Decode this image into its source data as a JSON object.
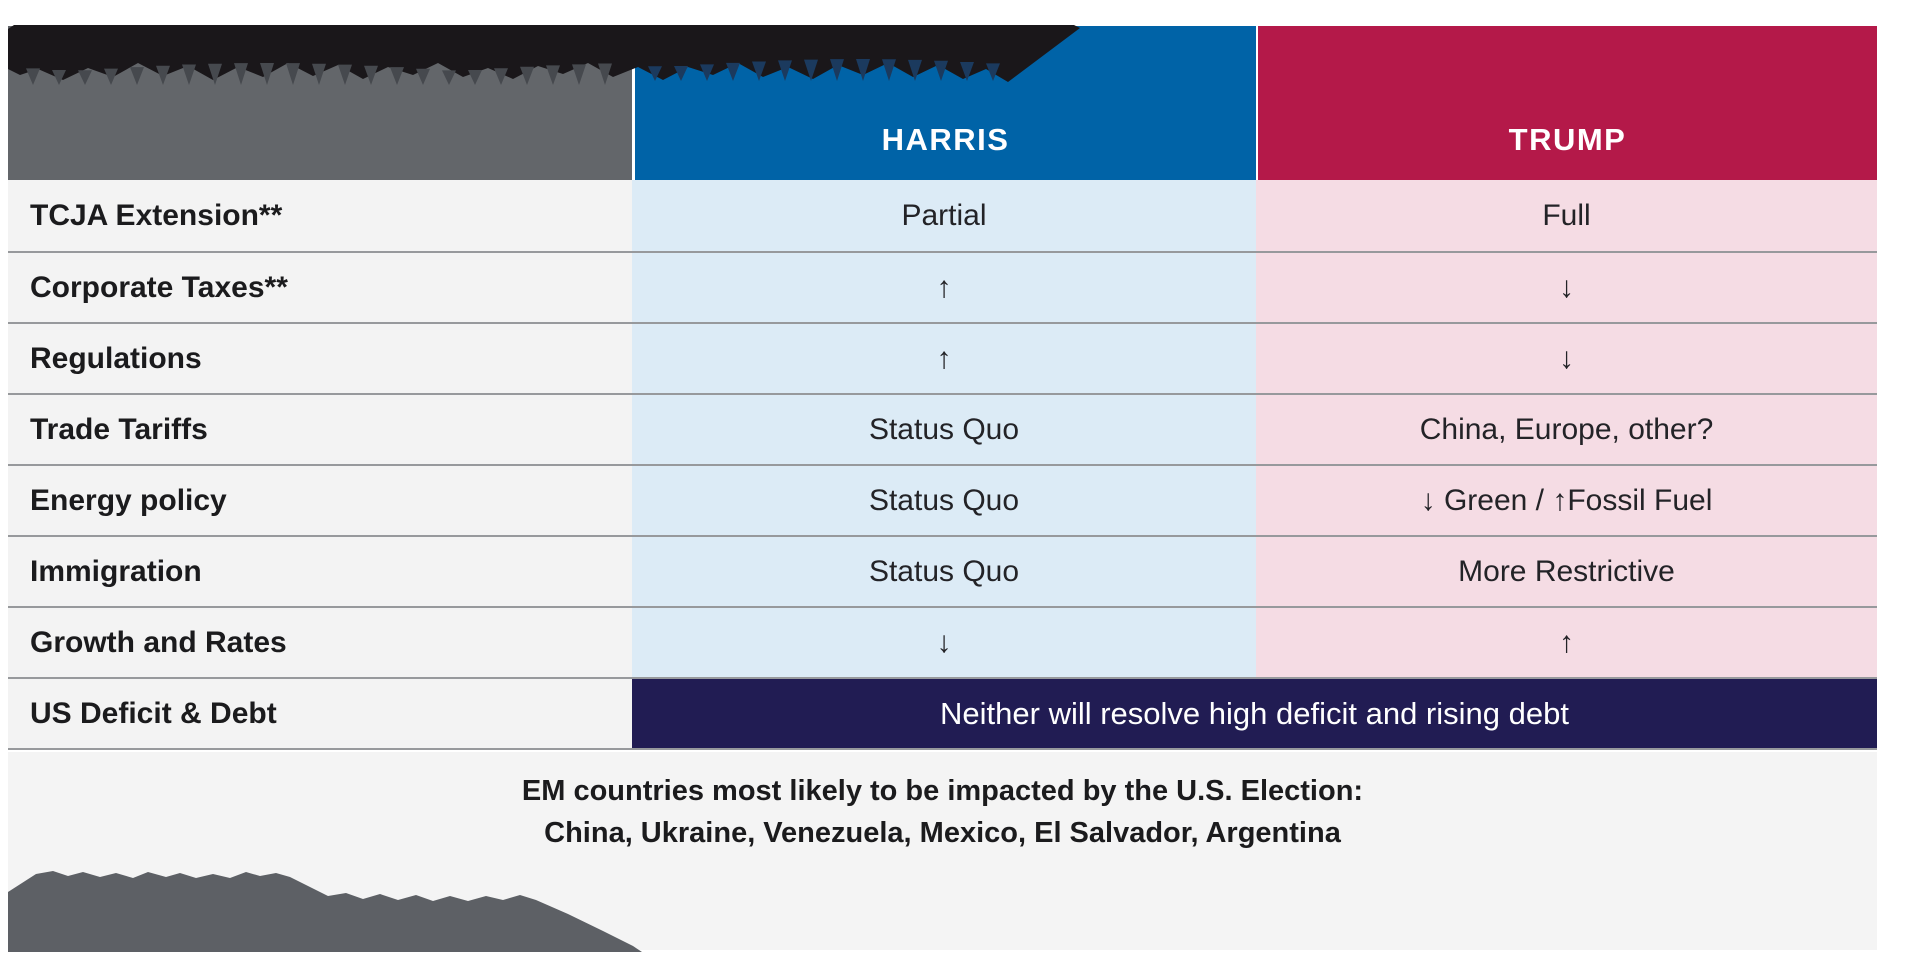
{
  "table": {
    "columns": {
      "label_header": "",
      "harris": "HARRIS",
      "trump": "TRUMP"
    },
    "rows": [
      {
        "label": "TCJA Extension**",
        "harris": "Partial",
        "trump": "Full"
      },
      {
        "label": "Corporate Taxes**",
        "harris": "↑",
        "trump": "↓"
      },
      {
        "label": "Regulations",
        "harris": "↑",
        "trump": "↓"
      },
      {
        "label": "Trade Tariffs",
        "harris": "Status Quo",
        "trump": "China, Europe, other?"
      },
      {
        "label": "Energy policy",
        "harris": "Status Quo",
        "trump": "↓ Green / ↑Fossil Fuel"
      },
      {
        "label": "Immigration",
        "harris": "Status Quo",
        "trump": "More Restrictive"
      },
      {
        "label": "Growth and Rates",
        "harris": "↓",
        "trump": "↑"
      }
    ],
    "merged_row": {
      "label": "US Deficit & Debt",
      "value": "Neither will resolve high deficit and rising debt"
    }
  },
  "footer": {
    "line1": "EM countries most likely to be impacted by the U.S. Election:",
    "line2": "China, Ukraine, Venezuela, Mexico, El Salvador, Argentina"
  },
  "redactions": {
    "title": "redacted-by-black-scribble",
    "footnote": "redacted-by-gray-scribble"
  },
  "colors": {
    "harris_header": "#0063a7",
    "trump_header": "#b41949",
    "harris_cell": "#dcebf6",
    "trump_cell": "#f5dce4",
    "merged_bar": "#211c53",
    "label_header_gray": "#63666a",
    "label_cell_bg": "#f3f3f3",
    "footer_bg": "#f4f4f4",
    "divider": "#97999c",
    "title_scribble": "#1a171a",
    "footnote_scribble": "#5d6065"
  }
}
